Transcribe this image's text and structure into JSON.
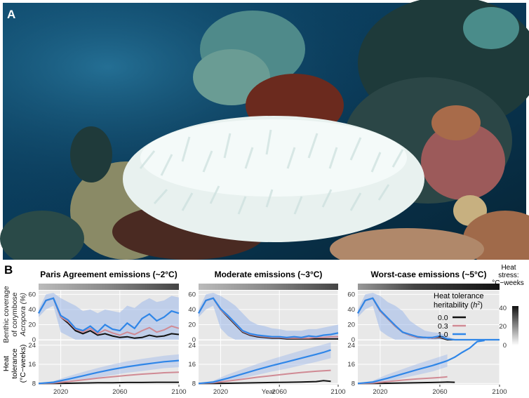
{
  "panel_a": {
    "label": "A",
    "image_description_icon": "bleached-coral-photo"
  },
  "panel_b": {
    "label": "B"
  },
  "colors": {
    "h0": "#111111",
    "h03": "#d08a94",
    "h10": "#2f86e8",
    "ribbon": "#9db8ea",
    "panel_bg": "#e8e8e8"
  },
  "chart_data": {
    "type": "line",
    "facets": [
      {
        "title": "Paris Agreement emissions (~2°C)",
        "xlabel": ""
      },
      {
        "title": "Moderate emissions (~3°C)",
        "xlabel": "Year"
      },
      {
        "title": "Worst-case emissions (~5°C)",
        "xlabel": ""
      }
    ],
    "x_ticks": [
      2020,
      2060,
      2100
    ],
    "xlim": [
      2005,
      2100
    ],
    "top_ylabel": [
      "Benthic coverage",
      "of corymbose",
      "Acropora (%)"
    ],
    "top_yticks": [
      0,
      20,
      40,
      60
    ],
    "top_ylim": [
      0,
      65
    ],
    "bottom_ylabel": [
      "Heat",
      "tolerance",
      "(°C−weeks)"
    ],
    "bottom_yticks": [
      8,
      16,
      24
    ],
    "bottom_ylim": [
      7.5,
      26
    ],
    "legend": {
      "title": "Heat tolerance heritability (h²)",
      "title_line1": "Heat tolerance",
      "title_line2": "heritability (",
      "title_h": "h",
      "title_sup": "2",
      "title_end": ")",
      "entries": [
        {
          "name": "0.0",
          "color": "#111111"
        },
        {
          "name": "0.3",
          "color": "#d08a94"
        },
        {
          "name": "1.0",
          "color": "#2f86e8"
        }
      ]
    },
    "heat_stress_bar": {
      "title_line1": "Heat",
      "title_line2": "stress:",
      "title_line3": "°C−weeks",
      "ticks": [
        0,
        20,
        40
      ]
    },
    "cover": [
      {
        "x": [
          2005,
          2010,
          2015,
          2020,
          2025,
          2030,
          2035,
          2040,
          2045,
          2050,
          2055,
          2060,
          2065,
          2070,
          2075,
          2080,
          2085,
          2090,
          2095,
          2100
        ],
        "h0": [
          35,
          52,
          55,
          30,
          22,
          12,
          8,
          12,
          6,
          8,
          5,
          3,
          4,
          2,
          3,
          6,
          4,
          5,
          8,
          7
        ],
        "h03": [
          35,
          52,
          55,
          30,
          24,
          14,
          10,
          15,
          8,
          13,
          9,
          6,
          10,
          7,
          12,
          16,
          10,
          13,
          18,
          15
        ],
        "h10": [
          35,
          52,
          55,
          32,
          26,
          15,
          12,
          18,
          10,
          20,
          14,
          12,
          22,
          15,
          28,
          34,
          25,
          30,
          38,
          35
        ],
        "lo": [
          30,
          40,
          45,
          10,
          5,
          0,
          0,
          0,
          0,
          0,
          0,
          0,
          0,
          0,
          0,
          0,
          0,
          0,
          0,
          0
        ],
        "hi": [
          40,
          60,
          62,
          55,
          50,
          45,
          38,
          40,
          35,
          40,
          38,
          36,
          45,
          42,
          50,
          55,
          50,
          52,
          58,
          56
        ]
      },
      {
        "x": [
          2005,
          2010,
          2015,
          2020,
          2025,
          2030,
          2035,
          2040,
          2045,
          2050,
          2055,
          2060,
          2065,
          2070,
          2075,
          2080,
          2085,
          2090,
          2095,
          2100
        ],
        "h0": [
          35,
          52,
          55,
          40,
          30,
          20,
          10,
          6,
          4,
          3,
          2,
          2,
          1,
          1,
          1,
          1,
          1,
          1,
          1,
          1
        ],
        "h03": [
          35,
          52,
          55,
          40,
          31,
          21,
          11,
          7,
          5,
          4,
          3,
          3,
          2,
          2,
          2,
          2,
          3,
          3,
          4,
          4
        ],
        "h10": [
          35,
          52,
          55,
          41,
          32,
          22,
          12,
          8,
          6,
          5,
          4,
          4,
          3,
          4,
          3,
          5,
          4,
          6,
          7,
          9
        ],
        "lo": [
          30,
          40,
          45,
          15,
          5,
          0,
          0,
          0,
          0,
          0,
          0,
          0,
          0,
          0,
          0,
          0,
          0,
          0,
          0,
          0
        ],
        "hi": [
          40,
          60,
          62,
          58,
          52,
          45,
          35,
          25,
          20,
          18,
          15,
          14,
          12,
          12,
          12,
          14,
          14,
          16,
          18,
          20
        ]
      },
      {
        "x": [
          2005,
          2010,
          2015,
          2020,
          2025,
          2030,
          2035,
          2040,
          2045,
          2050,
          2055,
          2060,
          2065,
          2070,
          2075,
          2080,
          2085,
          2090,
          2095,
          2100
        ],
        "h0": [
          35,
          52,
          55,
          38,
          28,
          18,
          10,
          6,
          3,
          3,
          2,
          3,
          0,
          0,
          0,
          0,
          0,
          0,
          0,
          0
        ],
        "h03": [
          35,
          52,
          55,
          38,
          28,
          18,
          10,
          6,
          3,
          3,
          2,
          4,
          1,
          0,
          0,
          0,
          0,
          0,
          0,
          0
        ],
        "h10": [
          35,
          52,
          55,
          39,
          29,
          19,
          10,
          7,
          4,
          3,
          3,
          5,
          1,
          0,
          0,
          0,
          0,
          0,
          0,
          0
        ],
        "lo": [
          30,
          40,
          45,
          12,
          5,
          0,
          0,
          0,
          0,
          0,
          0,
          0,
          0,
          0,
          0,
          0,
          0,
          0,
          0,
          0
        ],
        "hi": [
          40,
          60,
          62,
          58,
          50,
          45,
          38,
          25,
          18,
          12,
          10,
          9,
          5,
          0,
          0,
          0,
          0,
          0,
          0,
          0
        ]
      }
    ],
    "tolerance": [
      {
        "x": [
          2005,
          2015,
          2025,
          2035,
          2045,
          2055,
          2065,
          2075,
          2085,
          2090,
          2100
        ],
        "h0": [
          8,
          8,
          8.1,
          8.2,
          8.3,
          8.3,
          8.4,
          8.4,
          8.5,
          8.5,
          8.5
        ],
        "h03": [
          8,
          8.2,
          8.8,
          9.5,
          10.2,
          10.8,
          11.4,
          11.9,
          12.3,
          12.5,
          12.7
        ],
        "h10": [
          8,
          8.5,
          9.8,
          11.2,
          12.6,
          13.9,
          15.0,
          15.9,
          16.7,
          17.1,
          17.6
        ],
        "lo": [
          8,
          8,
          8.5,
          9.5,
          10.5,
          11.5,
          12.5,
          13.2,
          14.0,
          14.4,
          14.8
        ],
        "hi": [
          8,
          9,
          11,
          12.8,
          14.5,
          16,
          17.3,
          18.3,
          19.2,
          19.6,
          20.2
        ]
      },
      {
        "x": [
          2005,
          2015,
          2025,
          2035,
          2045,
          2055,
          2065,
          2075,
          2085,
          2090,
          2095
        ],
        "h0": [
          8,
          8,
          8.1,
          8.2,
          8.3,
          8.4,
          8.5,
          8.6,
          8.8,
          9.2,
          8.9
        ],
        "h03": [
          8,
          8.3,
          9.0,
          9.8,
          10.6,
          11.3,
          12.0,
          12.6,
          13.1,
          13.3,
          13.5
        ],
        "h10": [
          8,
          8.6,
          10.2,
          12.0,
          13.8,
          15.5,
          17.0,
          18.6,
          20.2,
          21.0,
          22.0
        ],
        "lo": [
          8,
          8,
          8.8,
          10.2,
          11.6,
          13.0,
          14.2,
          15.6,
          17.0,
          17.8,
          18.6
        ],
        "hi": [
          8,
          9.2,
          11.8,
          14.0,
          16.2,
          18.2,
          20.0,
          21.8,
          23.5,
          24.3,
          25.2
        ]
      },
      {
        "x": [
          2005,
          2015,
          2025,
          2035,
          2045,
          2055,
          2060,
          2065,
          2070,
          2075,
          2080,
          2085,
          2090
        ],
        "h0": [
          8,
          8,
          8.1,
          8.2,
          8.3,
          8.4,
          8.5,
          8.6,
          8.5,
          null,
          null,
          null,
          null
        ],
        "h03": [
          8,
          8.2,
          8.8,
          9.4,
          9.9,
          10.3,
          10.5,
          10.8,
          null,
          null,
          null,
          null,
          null
        ],
        "h10": [
          8,
          8.6,
          10.2,
          12.0,
          13.8,
          15.5,
          16.5,
          17.5,
          19.0,
          21.0,
          22.8,
          25.5,
          26.0
        ],
        "lo": [
          8,
          8,
          8.8,
          10.2,
          11.6,
          13.0,
          14.0,
          15.0,
          null,
          null,
          null,
          null,
          null
        ],
        "hi": [
          8,
          9.2,
          11.8,
          14.0,
          16.2,
          18.2,
          19.2,
          20.2,
          null,
          null,
          null,
          null,
          null
        ]
      }
    ]
  }
}
